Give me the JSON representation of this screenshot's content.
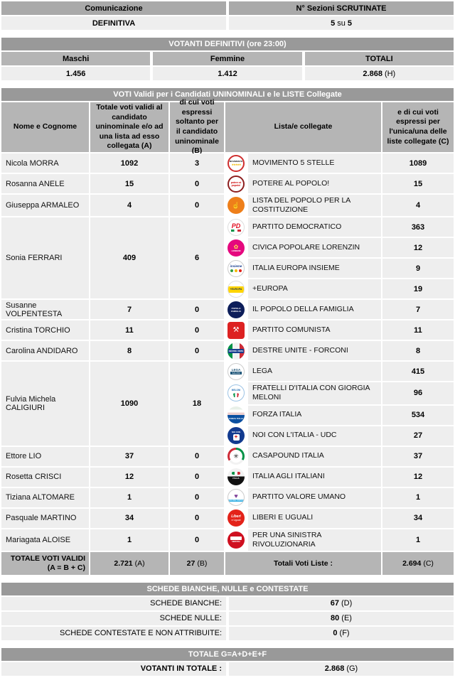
{
  "comunicazione": {
    "header": "Comunicazione",
    "value": "DEFINITIVA"
  },
  "sezioni": {
    "header": "N° Sezioni SCRUTINATE",
    "value_left": "5",
    "value_mid": "su",
    "value_right": "5"
  },
  "votanti": {
    "banner": "VOTANTI DEFINITIVI (ore 23:00)",
    "cols": [
      {
        "header": "Maschi",
        "value": "1.456",
        "tag": ""
      },
      {
        "header": "Femmine",
        "value": "1.412",
        "tag": ""
      },
      {
        "header": "TOTALI",
        "value": "2.868",
        "tag": "(H)"
      }
    ]
  },
  "main": {
    "banner": "VOTI Validi per i Candidati UNINOMINALI e le LISTE Collegate",
    "headers": {
      "name": "Nome e Cognome",
      "a": "Totale voti validi al candidato uninominale e/o ad una lista ad esso collegata (A)",
      "b": "di cui voti espressi soltanto per il candidato uninominale (B)",
      "lists": "Lista/e collegate",
      "c": "e di cui voti espressi per l'unica/una delle liste collegate (C)"
    },
    "candidates": [
      {
        "name": "Nicola MORRA",
        "a": "1092",
        "b": "3",
        "lists": [
          {
            "logo": "m5s",
            "name": "MOVIMENTO 5 STELLE",
            "c": "1089"
          }
        ]
      },
      {
        "name": "Rosanna ANELE",
        "a": "15",
        "b": "0",
        "lists": [
          {
            "logo": "pap",
            "name": "POTERE AL POPOLO!",
            "c": "15"
          }
        ]
      },
      {
        "name": "Giuseppa ARMALEO",
        "a": "4",
        "b": "0",
        "lists": [
          {
            "logo": "ldp",
            "name": "LISTA DEL POPOLO PER LA COSTITUZIONE",
            "c": "4"
          }
        ]
      },
      {
        "name": "Sonia FERRARI",
        "a": "409",
        "b": "6",
        "lists": [
          {
            "logo": "pd",
            "name": "PARTITO DEMOCRATICO",
            "c": "363"
          },
          {
            "logo": "cp",
            "name": "CIVICA POPOLARE LORENZIN",
            "c": "12"
          },
          {
            "logo": "iei",
            "name": "ITALIA EUROPA INSIEME",
            "c": "9"
          },
          {
            "logo": "pe",
            "name": "+EUROPA",
            "c": "19"
          }
        ]
      },
      {
        "name": "Susanne VOLPENTESTA",
        "a": "7",
        "b": "0",
        "lists": [
          {
            "logo": "pdf",
            "name": "IL POPOLO DELLA FAMIGLIA",
            "c": "7"
          }
        ]
      },
      {
        "name": "Cristina TORCHIO",
        "a": "11",
        "b": "0",
        "lists": [
          {
            "logo": "pc",
            "name": "PARTITO COMUNISTA",
            "c": "11"
          }
        ]
      },
      {
        "name": "Carolina ANDIDARO",
        "a": "8",
        "b": "0",
        "lists": [
          {
            "logo": "duf",
            "name": "DESTRE UNITE - FORCONI",
            "c": "8"
          }
        ]
      },
      {
        "name": "Fulvia Michela CALIGIURI",
        "a": "1090",
        "b": "18",
        "lists": [
          {
            "logo": "lega",
            "name": "LEGA",
            "c": "415"
          },
          {
            "logo": "fdi",
            "name": "FRATELLI D'ITALIA CON GIORGIA MELONI",
            "c": "96"
          },
          {
            "logo": "fi",
            "name": "FORZA ITALIA",
            "c": "534"
          },
          {
            "logo": "nci",
            "name": "NOI CON L'ITALIA - UDC",
            "c": "27"
          }
        ]
      },
      {
        "name": "Ettore LIO",
        "a": "37",
        "b": "0",
        "lists": [
          {
            "logo": "cpi",
            "name": "CASAPOUND ITALIA",
            "c": "37"
          }
        ]
      },
      {
        "name": "Rosetta CRISCI",
        "a": "12",
        "b": "0",
        "lists": [
          {
            "logo": "iai",
            "name": "ITALIA AGLI ITALIANI",
            "c": "12"
          }
        ]
      },
      {
        "name": "Tiziana ALTOMARE",
        "a": "1",
        "b": "0",
        "lists": [
          {
            "logo": "pvu",
            "name": "PARTITO VALORE UMANO",
            "c": "1"
          }
        ]
      },
      {
        "name": "Pasquale MARTINO",
        "a": "34",
        "b": "0",
        "lists": [
          {
            "logo": "leu",
            "name": "LIBERI E UGUALI",
            "c": "34"
          }
        ]
      },
      {
        "name": "Mariagata ALOISE",
        "a": "1",
        "b": "0",
        "lists": [
          {
            "logo": "psr",
            "name": "PER UNA SINISTRA RIVOLUZIONARIA",
            "c": "1"
          }
        ]
      }
    ],
    "totals": {
      "label_line1": "TOTALE VOTI VALIDI",
      "label_line2": "(A = B + C)",
      "a": "2.721",
      "a_tag": "(A)",
      "b": "27",
      "b_tag": "(B)",
      "lists_label": "Totali Voti Liste :",
      "c": "2.694",
      "c_tag": "(C)"
    }
  },
  "schede": {
    "banner": "SCHEDE BIANCHE, NULLE e CONTESTATE",
    "rows": [
      {
        "label": "SCHEDE BIANCHE:",
        "value": "67",
        "tag": "(D)"
      },
      {
        "label": "SCHEDE NULLE:",
        "value": "80",
        "tag": "(E)"
      },
      {
        "label": "SCHEDE CONTESTATE E NON ATTRIBUITE:",
        "value": "0",
        "tag": "(F)"
      }
    ]
  },
  "totale_g": {
    "banner": "TOTALE G=A+D+E+F",
    "label": "VOTANTI IN TOTALE :",
    "value": "2.868",
    "tag": "(G)"
  }
}
